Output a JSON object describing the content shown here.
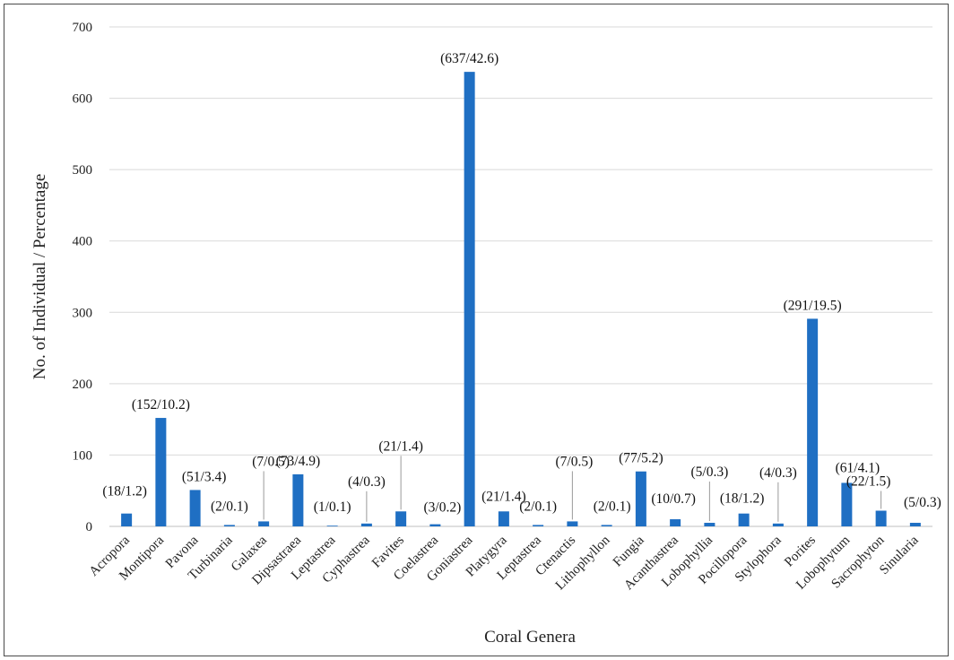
{
  "chart_data": {
    "type": "bar",
    "title": "",
    "xlabel": "Coral Genera",
    "ylabel": "No. of Individual / Percentage",
    "ylim": [
      0,
      700
    ],
    "yticks": [
      0,
      100,
      200,
      300,
      400,
      500,
      600,
      700
    ],
    "grid": true,
    "bar_color": "#1f6fc3",
    "categories": [
      "Acropora",
      "Montipora",
      "Pavona",
      "Turbinaria",
      "Galaxea",
      "Dipsastraea",
      "Leptastrea",
      "Cyphastrea",
      "Favites",
      "Coelastrea",
      "Goniastrea",
      "Platygyra",
      "Leptastrea",
      "Ctenactis",
      "Lithophyllon",
      "Fungia",
      "Acanthastrea",
      "Lobophyllia",
      "Pocillopora",
      "Stylophora",
      "Porites",
      "Lobophytum",
      "Sacrophyton",
      "Sinularia"
    ],
    "values": [
      18,
      152,
      51,
      2,
      7,
      73,
      1,
      4,
      21,
      3,
      637,
      21,
      2,
      7,
      2,
      77,
      10,
      5,
      18,
      4,
      291,
      61,
      22,
      5
    ],
    "data_labels": [
      "(18/1.2)",
      "(152/10.2)",
      "(51/3.4)",
      "(2/0.1)",
      "(7/0.5)",
      "(73/4.9)",
      "(1/0.1)",
      "(4/0.3)",
      "(21/1.4)",
      "(3/0.2)",
      "(637/42.6)",
      "(21/1.4)",
      "(2/0.1)",
      "(7/0.5)",
      "(2/0.1)",
      "(77/5.2)",
      "(10/0.7)",
      "(5/0.3)",
      "(18/1.2)",
      "(4/0.3)",
      "(291/19.5)",
      "(61/4.1)",
      "(22/1.5)",
      "(5/0.3)"
    ]
  }
}
